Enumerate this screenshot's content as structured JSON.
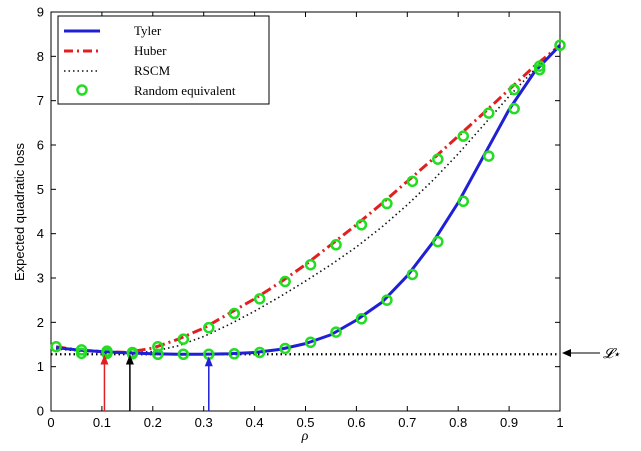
{
  "chart_data": {
    "type": "line",
    "xlabel": "ρ",
    "ylabel": "Expected quadratic loss",
    "xlim": [
      0,
      1
    ],
    "ylim": [
      0,
      9
    ],
    "xticks": [
      "0",
      "0.1",
      "0.2",
      "0.3",
      "0.4",
      "0.5",
      "0.6",
      "0.7",
      "0.8",
      "0.9",
      "1"
    ],
    "yticks": [
      "0",
      "1",
      "2",
      "3",
      "4",
      "5",
      "6",
      "7",
      "8",
      "9"
    ],
    "grid": false,
    "legend_position": "top-left",
    "series": [
      {
        "name": "Tyler",
        "style": "solid",
        "color": "#1f1fd6",
        "x": [
          0.01,
          0.05,
          0.1,
          0.15,
          0.2,
          0.25,
          0.3,
          0.35,
          0.4,
          0.45,
          0.5,
          0.55,
          0.6,
          0.65,
          0.7,
          0.75,
          0.8,
          0.85,
          0.9,
          0.95,
          1.0
        ],
        "y": [
          1.43,
          1.38,
          1.34,
          1.31,
          1.29,
          1.28,
          1.28,
          1.29,
          1.32,
          1.39,
          1.52,
          1.72,
          2.05,
          2.45,
          3.05,
          3.8,
          4.7,
          5.75,
          6.8,
          7.65,
          8.25
        ]
      },
      {
        "name": "Huber",
        "style": "dash-dot",
        "color": "#e02020",
        "x": [
          0.01,
          0.05,
          0.1,
          0.15,
          0.2,
          0.25,
          0.3,
          0.35,
          0.4,
          0.45,
          0.5,
          0.55,
          0.6,
          0.65,
          0.7,
          0.75,
          0.8,
          0.85,
          0.9,
          0.95,
          1.0
        ],
        "y": [
          1.45,
          1.38,
          1.34,
          1.32,
          1.42,
          1.62,
          1.87,
          2.2,
          2.53,
          2.9,
          3.3,
          3.75,
          4.2,
          4.68,
          5.18,
          5.68,
          6.2,
          6.72,
          7.25,
          7.78,
          8.25
        ]
      },
      {
        "name": "RSCM",
        "style": "dotted",
        "color": "#111111",
        "x": [
          0.01,
          0.05,
          0.1,
          0.15,
          0.2,
          0.25,
          0.3,
          0.35,
          0.4,
          0.45,
          0.5,
          0.55,
          0.6,
          0.65,
          0.7,
          0.75,
          0.8,
          0.85,
          0.9,
          0.95,
          1.0
        ],
        "y": [
          1.4,
          1.36,
          1.32,
          1.31,
          1.34,
          1.47,
          1.68,
          1.95,
          2.25,
          2.58,
          2.93,
          3.3,
          3.7,
          4.15,
          4.65,
          5.2,
          5.8,
          6.45,
          7.1,
          7.7,
          8.25
        ]
      },
      {
        "name": "Random equivalent",
        "style": "circle-markers",
        "color": "#22dd22",
        "points": [
          [
            0.01,
            1.45
          ],
          [
            0.06,
            1.38
          ],
          [
            0.11,
            1.35
          ],
          [
            0.16,
            1.32
          ],
          [
            0.21,
            1.45
          ],
          [
            0.26,
            1.62
          ],
          [
            0.31,
            1.88
          ],
          [
            0.36,
            2.2
          ],
          [
            0.41,
            2.53
          ],
          [
            0.46,
            2.92
          ],
          [
            0.51,
            3.3
          ],
          [
            0.56,
            3.75
          ],
          [
            0.61,
            4.2
          ],
          [
            0.66,
            4.68
          ],
          [
            0.71,
            5.18
          ],
          [
            0.76,
            5.68
          ],
          [
            0.81,
            6.2
          ],
          [
            0.86,
            6.72
          ],
          [
            0.91,
            7.25
          ],
          [
            0.96,
            7.78
          ],
          [
            1.0,
            8.25
          ],
          [
            0.06,
            1.3
          ],
          [
            0.11,
            1.3
          ],
          [
            0.16,
            1.29
          ],
          [
            0.21,
            1.28
          ],
          [
            0.26,
            1.28
          ],
          [
            0.31,
            1.28
          ],
          [
            0.36,
            1.29
          ],
          [
            0.41,
            1.32
          ],
          [
            0.46,
            1.41
          ],
          [
            0.51,
            1.55
          ],
          [
            0.56,
            1.78
          ],
          [
            0.61,
            2.08
          ],
          [
            0.66,
            2.5
          ],
          [
            0.71,
            3.08
          ],
          [
            0.76,
            3.82
          ],
          [
            0.81,
            4.73
          ],
          [
            0.86,
            5.75
          ],
          [
            0.91,
            6.82
          ],
          [
            0.96,
            7.7
          ]
        ]
      }
    ],
    "reference_line": {
      "y": 1.28,
      "label": "𝓛⋆",
      "style": "dotted",
      "color": "#000000"
    },
    "markers": [
      {
        "x": 0.105,
        "y": 1.32,
        "color": "#e02020"
      },
      {
        "x": 0.155,
        "y": 1.32,
        "color": "#000000"
      },
      {
        "x": 0.31,
        "y": 1.28,
        "color": "#1f1fd6"
      }
    ]
  }
}
